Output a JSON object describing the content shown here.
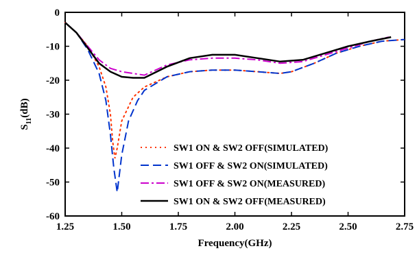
{
  "chart_data": {
    "type": "line",
    "title": "",
    "xlabel": "Frequency(GHz)",
    "ylabel_main": "S",
    "ylabel_sub": "11",
    "ylabel_unit": "(dB)",
    "xlim": [
      1.25,
      2.75
    ],
    "ylim": [
      -60,
      0
    ],
    "xticks": [
      1.25,
      1.5,
      1.75,
      2.0,
      2.25,
      2.5,
      2.75
    ],
    "xtick_labels": [
      "1.25",
      "1.50",
      "1.75",
      "2.00",
      "2.25",
      "2.50",
      "2.75"
    ],
    "yticks": [
      0,
      -10,
      -20,
      -30,
      -40,
      -50,
      -60
    ],
    "ytick_labels": [
      "0",
      "-10",
      "-20",
      "-30",
      "-40",
      "-50",
      "-60"
    ],
    "grid": false,
    "legend_position": "bottom-right",
    "series": [
      {
        "name": "SW1 ON & SW2 OFF(SIMULATED)",
        "color": "#ff3300",
        "dash": "dot",
        "points": [
          [
            1.25,
            -3
          ],
          [
            1.3,
            -6
          ],
          [
            1.35,
            -10
          ],
          [
            1.4,
            -16
          ],
          [
            1.43,
            -22
          ],
          [
            1.45,
            -30
          ],
          [
            1.46,
            -38
          ],
          [
            1.47,
            -43
          ],
          [
            1.48,
            -40
          ],
          [
            1.5,
            -32
          ],
          [
            1.55,
            -25
          ],
          [
            1.6,
            -22
          ],
          [
            1.7,
            -19
          ],
          [
            1.8,
            -17.5
          ],
          [
            1.9,
            -17
          ],
          [
            2.0,
            -17
          ],
          [
            2.1,
            -17.5
          ],
          [
            2.2,
            -18
          ],
          [
            2.25,
            -17.5
          ],
          [
            2.35,
            -15
          ],
          [
            2.45,
            -12
          ],
          [
            2.55,
            -10
          ],
          [
            2.65,
            -8.5
          ],
          [
            2.75,
            -8
          ]
        ]
      },
      {
        "name": "SW1 OFF & SW2 ON(SIMULATED)",
        "color": "#0033cc",
        "dash": "dash",
        "points": [
          [
            1.25,
            -3
          ],
          [
            1.3,
            -6
          ],
          [
            1.35,
            -11
          ],
          [
            1.4,
            -18
          ],
          [
            1.43,
            -26
          ],
          [
            1.45,
            -36
          ],
          [
            1.465,
            -46
          ],
          [
            1.48,
            -53
          ],
          [
            1.5,
            -42
          ],
          [
            1.53,
            -32
          ],
          [
            1.57,
            -26
          ],
          [
            1.6,
            -23
          ],
          [
            1.7,
            -19
          ],
          [
            1.8,
            -17.5
          ],
          [
            1.9,
            -17
          ],
          [
            2.0,
            -17
          ],
          [
            2.1,
            -17.5
          ],
          [
            2.2,
            -18
          ],
          [
            2.25,
            -17.5
          ],
          [
            2.35,
            -15
          ],
          [
            2.45,
            -12
          ],
          [
            2.55,
            -10
          ],
          [
            2.65,
            -8.5
          ],
          [
            2.75,
            -8
          ]
        ]
      },
      {
        "name": "SW1 OFF & SW2 ON(MEASURED)",
        "color": "#cc00cc",
        "dash": "dashdot",
        "points": [
          [
            1.25,
            -3
          ],
          [
            1.3,
            -6
          ],
          [
            1.35,
            -10
          ],
          [
            1.4,
            -14
          ],
          [
            1.45,
            -16.5
          ],
          [
            1.5,
            -17.5
          ],
          [
            1.55,
            -18
          ],
          [
            1.6,
            -18.5
          ],
          [
            1.7,
            -15.5
          ],
          [
            1.8,
            -14
          ],
          [
            1.9,
            -13.5
          ],
          [
            2.0,
            -13.5
          ],
          [
            2.1,
            -14
          ],
          [
            2.2,
            -15
          ],
          [
            2.3,
            -14.5
          ],
          [
            2.4,
            -12.5
          ],
          [
            2.5,
            -10.5
          ],
          [
            2.6,
            -8.5
          ],
          [
            2.68,
            -7.3
          ]
        ]
      },
      {
        "name": "SW1 ON & SW2 OFF(MEASURED)",
        "color": "#000000",
        "dash": "solid",
        "points": [
          [
            1.25,
            -3
          ],
          [
            1.3,
            -6
          ],
          [
            1.35,
            -10.5
          ],
          [
            1.4,
            -15
          ],
          [
            1.45,
            -17.5
          ],
          [
            1.5,
            -19
          ],
          [
            1.55,
            -19.3
          ],
          [
            1.6,
            -19.3
          ],
          [
            1.7,
            -16
          ],
          [
            1.8,
            -13.5
          ],
          [
            1.9,
            -12.5
          ],
          [
            2.0,
            -12.5
          ],
          [
            2.1,
            -13.5
          ],
          [
            2.2,
            -14.5
          ],
          [
            2.3,
            -14
          ],
          [
            2.4,
            -12
          ],
          [
            2.5,
            -10
          ],
          [
            2.6,
            -8.5
          ],
          [
            2.69,
            -7.3
          ]
        ]
      }
    ]
  }
}
